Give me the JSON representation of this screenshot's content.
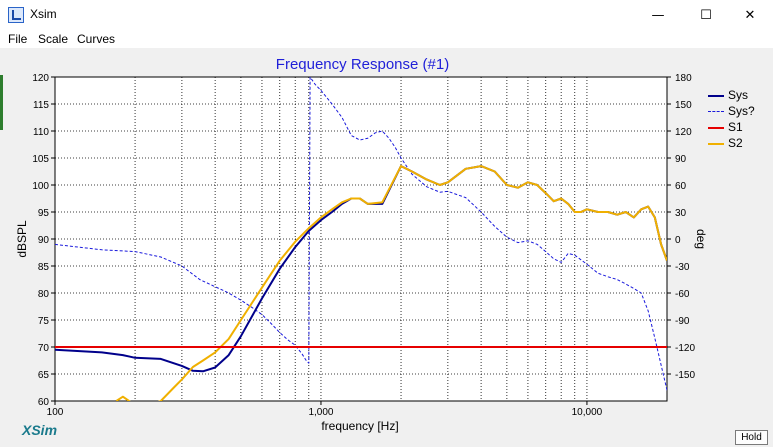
{
  "window": {
    "title": "Xsim",
    "minimize_glyph": "—",
    "maximize_glyph": "☐",
    "close_glyph": "✕",
    "app_icon": "xsim-app-icon"
  },
  "menu": [
    "File",
    "Scale",
    "Curves"
  ],
  "brand": "XSim",
  "hold_label": "Hold",
  "chart_data": {
    "type": "line",
    "title": "Frequency Response (#1)",
    "xlabel": "frequency [Hz]",
    "ylabel": "dBSPL",
    "y2label": "deg",
    "xscale": "log",
    "xlim": [
      100,
      20000
    ],
    "ylim": [
      60,
      120
    ],
    "y2lim": [
      -180,
      180
    ],
    "grid": true,
    "legend_position": "right",
    "x_tick_labels": [
      {
        "value": 100,
        "label": "100"
      },
      {
        "value": 1000,
        "label": "1,000"
      },
      {
        "value": 10000,
        "label": "10,000"
      }
    ],
    "y_ticks": [
      60,
      65,
      70,
      75,
      80,
      85,
      90,
      95,
      100,
      105,
      110,
      115,
      120
    ],
    "y2_ticks": [
      -150,
      -120,
      -90,
      -60,
      -30,
      0,
      30,
      60,
      90,
      120,
      150,
      180
    ],
    "series": [
      {
        "name": "Sys",
        "color": "#00008b",
        "axis": "left",
        "x": [
          100,
          150,
          180,
          200,
          250,
          300,
          330,
          360,
          400,
          450,
          500,
          600,
          700,
          800,
          900,
          1000,
          1100,
          1200,
          1300,
          1400,
          1500,
          1700,
          2000,
          2200,
          2500,
          2800,
          3000,
          3500,
          4000,
          4500,
          5000,
          5500,
          6000,
          6500,
          7000,
          7500,
          8000,
          8500,
          9000,
          9500,
          10000,
          11000,
          12000,
          13000,
          14000,
          15000,
          16000,
          17000,
          18000,
          19000,
          20000
        ],
        "y": [
          69.5,
          69,
          68.5,
          68,
          67.8,
          66.5,
          65.6,
          65.5,
          66.2,
          68.5,
          72,
          79,
          84.5,
          88.5,
          91.5,
          93.5,
          95,
          96.5,
          97.5,
          97.5,
          96.5,
          96.5,
          103.5,
          102.5,
          101,
          100,
          100.5,
          103,
          103.5,
          102.5,
          100,
          99.5,
          100.5,
          100,
          98.5,
          97,
          97.5,
          96.5,
          95,
          95,
          95.5,
          95,
          95,
          94.5,
          95,
          94,
          95.5,
          96,
          94,
          89,
          86
        ]
      },
      {
        "name": "Sys?",
        "color": "#1a1adc",
        "axis": "right",
        "dashed": true,
        "x": [
          100,
          150,
          200,
          250,
          300,
          350,
          400,
          450,
          500,
          550,
          600,
          650,
          700,
          750,
          800,
          850,
          880,
          900,
          910,
          950,
          1000,
          1100,
          1200,
          1300,
          1400,
          1500,
          1600,
          1700,
          1800,
          1900,
          2000,
          2200,
          2500,
          2800,
          3000,
          3200,
          3500,
          4000,
          4500,
          5000,
          5500,
          6000,
          6500,
          7000,
          7500,
          8000,
          8500,
          9000,
          10000,
          11000,
          12000,
          13000,
          14000,
          15000,
          16000,
          17000,
          18000,
          19000,
          20000
        ],
        "y": [
          -6,
          -12,
          -14,
          -20,
          -30,
          -45,
          -53,
          -60,
          -68,
          -76,
          -84,
          -94,
          -104,
          -112,
          -118,
          -128,
          -135,
          -138,
          180,
          172,
          165,
          150,
          135,
          115,
          110,
          112,
          118,
          120,
          112,
          102,
          90,
          72,
          58,
          52,
          53,
          50,
          46,
          30,
          14,
          2,
          -4,
          -2,
          -6,
          -14,
          -22,
          -26,
          -16,
          -18,
          -28,
          -38,
          -42,
          -45,
          -50,
          -55,
          -60,
          -80,
          -110,
          -140,
          -168
        ]
      },
      {
        "name": "S1",
        "color": "#e60000",
        "axis": "left",
        "x": [
          100,
          20000
        ],
        "y": [
          70,
          70
        ]
      },
      {
        "name": "S2",
        "color": "#f0b000",
        "axis": "left",
        "x": [
          170,
          180,
          190,
          200,
          220,
          250,
          280,
          300,
          330,
          360,
          400,
          450,
          500,
          600,
          700,
          800,
          900,
          1000,
          1100,
          1200,
          1300,
          1400,
          1500,
          1700,
          2000,
          2200,
          2500,
          2800,
          3000,
          3500,
          4000,
          4500,
          5000,
          5500,
          6000,
          6500,
          7000,
          7500,
          8000,
          8500,
          9000,
          9500,
          10000,
          11000,
          12000,
          13000,
          14000,
          15000,
          16000,
          17000,
          18000,
          19000,
          20000
        ],
        "y": [
          60,
          60.8,
          60,
          59,
          59,
          60,
          62.5,
          64,
          66.3,
          67.5,
          69,
          71.5,
          75,
          81,
          86,
          89.5,
          92,
          94,
          95.5,
          96.8,
          97.5,
          97.5,
          96.5,
          96.8,
          103.5,
          102.5,
          101,
          100,
          100.5,
          103,
          103.5,
          102.5,
          100,
          99.5,
          100.5,
          100,
          98.5,
          97,
          97.5,
          96.5,
          95,
          95,
          95.5,
          95,
          95,
          94.5,
          95,
          94,
          95.5,
          96,
          94,
          89,
          86
        ]
      }
    ]
  }
}
